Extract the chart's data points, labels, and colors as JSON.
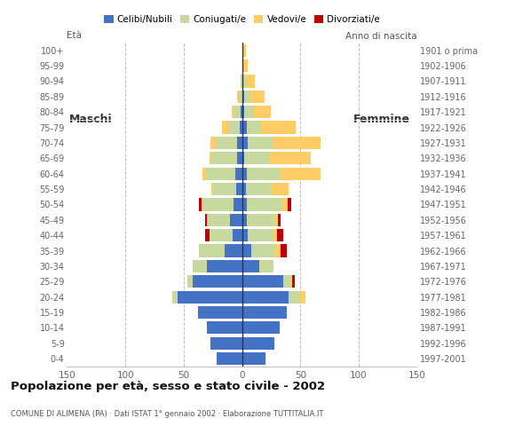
{
  "age_groups": [
    "0-4",
    "5-9",
    "10-14",
    "15-19",
    "20-24",
    "25-29",
    "30-34",
    "35-39",
    "40-44",
    "45-49",
    "50-54",
    "55-59",
    "60-64",
    "65-69",
    "70-74",
    "75-79",
    "80-84",
    "85-89",
    "90-94",
    "95-99",
    "100+"
  ],
  "birth_years": [
    "1997-2001",
    "1992-1996",
    "1987-1991",
    "1982-1986",
    "1977-1981",
    "1972-1976",
    "1967-1971",
    "1962-1966",
    "1957-1961",
    "1952-1956",
    "1947-1951",
    "1942-1946",
    "1937-1941",
    "1932-1936",
    "1927-1931",
    "1922-1926",
    "1917-1921",
    "1912-1916",
    "1907-1911",
    "1902-1906",
    "1901 o prima"
  ],
  "males": {
    "celibe": [
      22,
      27,
      30,
      38,
      55,
      42,
      30,
      15,
      8,
      10,
      7,
      5,
      6,
      4,
      4,
      2,
      1,
      0,
      0,
      0,
      0
    ],
    "coniugato": [
      0,
      0,
      0,
      0,
      5,
      5,
      12,
      22,
      20,
      20,
      28,
      20,
      26,
      22,
      18,
      10,
      6,
      3,
      1,
      0,
      0
    ],
    "vedovo": [
      0,
      0,
      0,
      0,
      0,
      0,
      0,
      0,
      0,
      0,
      0,
      1,
      2,
      2,
      5,
      5,
      2,
      1,
      0,
      0,
      0
    ],
    "divorziato": [
      0,
      0,
      0,
      0,
      0,
      0,
      0,
      0,
      4,
      2,
      2,
      0,
      0,
      0,
      0,
      0,
      0,
      0,
      0,
      0,
      0
    ]
  },
  "females": {
    "nubile": [
      20,
      28,
      32,
      38,
      40,
      35,
      15,
      8,
      5,
      4,
      4,
      3,
      4,
      2,
      5,
      4,
      2,
      2,
      1,
      0,
      0
    ],
    "coniugata": [
      0,
      0,
      0,
      0,
      10,
      6,
      12,
      20,
      22,
      24,
      30,
      22,
      28,
      22,
      22,
      12,
      8,
      5,
      2,
      0,
      0
    ],
    "vedova": [
      0,
      0,
      0,
      0,
      4,
      2,
      0,
      5,
      3,
      3,
      5,
      15,
      35,
      35,
      40,
      30,
      15,
      12,
      8,
      5,
      3
    ],
    "divorziata": [
      0,
      0,
      0,
      0,
      0,
      2,
      0,
      5,
      5,
      2,
      3,
      0,
      0,
      0,
      0,
      0,
      0,
      0,
      0,
      0,
      0
    ]
  },
  "colors": {
    "celibe_nubile": "#4472C4",
    "coniugato_coniugata": "#C8D9A0",
    "vedovo_vedova": "#FFCC66",
    "divorziato_divorziata": "#C00000"
  },
  "legend_labels": [
    "Celibi/Nubili",
    "Coniugati/e",
    "Vedovi/e",
    "Divorziati/e"
  ],
  "title": "Popolazione per età, sesso e stato civile - 2002",
  "subtitle": "COMUNE DI ALIMENA (PA) · Dati ISTAT 1° gennaio 2002 · Elaborazione TUTTITALIA.IT",
  "label_eta": "Età",
  "label_anno": "Anno di nascita",
  "label_maschi": "Maschi",
  "label_femmine": "Femmine",
  "xlim": 150,
  "background_color": "#ffffff",
  "grid_color": "#bbbbbb"
}
